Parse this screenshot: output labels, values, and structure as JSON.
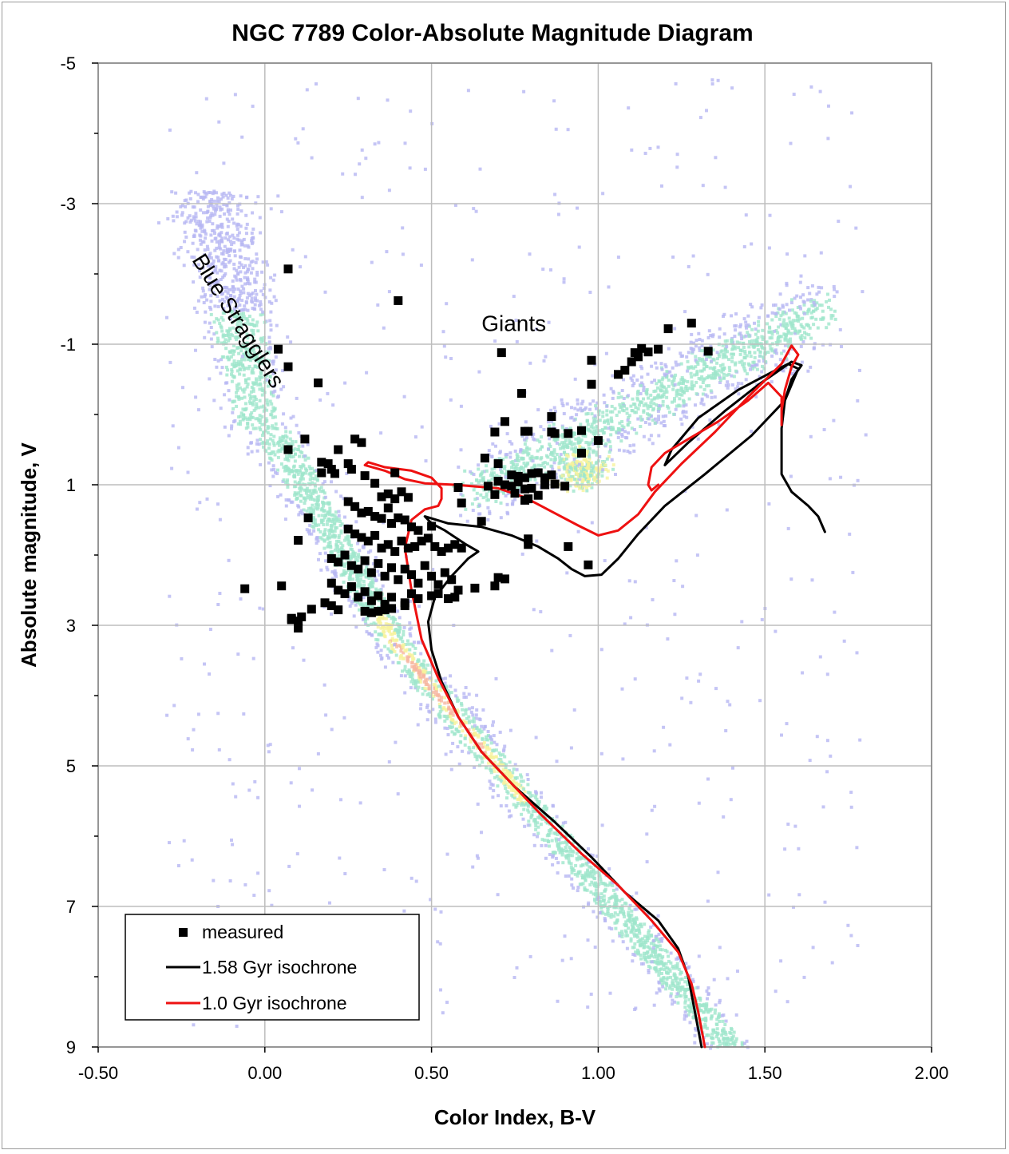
{
  "chart_data": {
    "type": "scatter",
    "title": "NGC 7789 Color-Absolute Magnitude Diagram",
    "xlabel": "Color Index, B-V",
    "ylabel": "Absolute magnitude, V",
    "xlim": [
      -0.5,
      2.0
    ],
    "ylim": [
      9,
      -5
    ],
    "y_inverted": true,
    "x_ticks": [
      -0.5,
      0.0,
      0.5,
      1.0,
      1.5,
      2.0
    ],
    "x_tick_labels": [
      "-0.50",
      "0.00",
      "0.50",
      "1.00",
      "1.50",
      "2.00"
    ],
    "y_ticks": [
      -5,
      -3,
      -1,
      1,
      3,
      5,
      7,
      9
    ],
    "y_tick_labels": [
      "-5",
      "-3",
      "-1",
      "1",
      "3",
      "5",
      "7",
      "9"
    ],
    "y_minor_step": 1,
    "grid": true,
    "legend_position": "bottom-left",
    "colors": {
      "measured": "#000000",
      "iso_158": "#000000",
      "iso_10": "#ee1111",
      "density_low": "#b6b6f2",
      "density_mid": "#9fe6cc",
      "density_high": "#f6f39c",
      "density_peak": "#f6b6a0"
    },
    "annotations": [
      {
        "text": "Blue Stragglers",
        "x": -0.22,
        "y": -2.2,
        "rotation": 58
      },
      {
        "text": "Giants",
        "x": 0.65,
        "y": -1.3
      }
    ],
    "legend": {
      "items": [
        {
          "label": "measured"
        },
        {
          "label": "1.58 Gyr isochrone"
        },
        {
          "label": "1.0 Gyr isochrone"
        }
      ]
    },
    "series": [
      {
        "name": "measured",
        "kind": "scatter",
        "points": [
          [
            0.07,
            -2.07
          ],
          [
            0.4,
            -1.62
          ],
          [
            0.04,
            -0.93
          ],
          [
            0.07,
            -0.68
          ],
          [
            0.16,
            -0.45
          ],
          [
            0.71,
            -0.88
          ],
          [
            0.98,
            -0.77
          ],
          [
            0.98,
            -0.43
          ],
          [
            0.77,
            -0.3
          ],
          [
            1.21,
            -1.22
          ],
          [
            1.28,
            -1.3
          ],
          [
            1.33,
            -0.9
          ],
          [
            1.13,
            -0.94
          ],
          [
            1.15,
            -0.89
          ],
          [
            1.18,
            -0.93
          ],
          [
            1.11,
            -0.88
          ],
          [
            1.12,
            -0.82
          ],
          [
            1.1,
            -0.75
          ],
          [
            1.08,
            -0.63
          ],
          [
            1.06,
            -0.57
          ],
          [
            0.72,
            0.1
          ],
          [
            0.69,
            0.25
          ],
          [
            0.78,
            0.24
          ],
          [
            0.79,
            0.24
          ],
          [
            0.86,
            0.03
          ],
          [
            0.86,
            0.25
          ],
          [
            0.87,
            0.27
          ],
          [
            0.91,
            0.27
          ],
          [
            0.95,
            0.23
          ],
          [
            1.0,
            0.37
          ],
          [
            0.95,
            0.55
          ],
          [
            0.66,
            0.62
          ],
          [
            0.7,
            0.7
          ],
          [
            0.74,
            0.86
          ],
          [
            0.76,
            0.88
          ],
          [
            0.78,
            0.9
          ],
          [
            0.8,
            0.84
          ],
          [
            0.82,
            0.83
          ],
          [
            0.84,
            0.9
          ],
          [
            0.86,
            0.86
          ],
          [
            0.7,
            0.95
          ],
          [
            0.72,
            1.0
          ],
          [
            0.74,
            1.02
          ],
          [
            0.76,
            0.96
          ],
          [
            0.78,
            1.06
          ],
          [
            0.8,
            1.05
          ],
          [
            0.82,
            1.15
          ],
          [
            0.84,
            1.0
          ],
          [
            0.87,
            0.99
          ],
          [
            0.9,
            1.02
          ],
          [
            0.67,
            1.02
          ],
          [
            0.69,
            1.14
          ],
          [
            0.75,
            1.12
          ],
          [
            0.78,
            1.22
          ],
          [
            0.79,
            1.2
          ],
          [
            0.58,
            1.04
          ],
          [
            0.59,
            1.26
          ],
          [
            0.65,
            1.52
          ],
          [
            0.79,
            1.77
          ],
          [
            0.79,
            1.85
          ],
          [
            0.91,
            1.88
          ],
          [
            0.97,
            2.14
          ],
          [
            0.7,
            2.32
          ],
          [
            0.72,
            2.34
          ],
          [
            0.69,
            2.44
          ],
          [
            0.63,
            2.47
          ],
          [
            0.27,
            0.35
          ],
          [
            0.29,
            0.4
          ],
          [
            0.22,
            0.5
          ],
          [
            0.07,
            0.5
          ],
          [
            0.12,
            0.35
          ],
          [
            0.17,
            0.68
          ],
          [
            0.19,
            0.7
          ],
          [
            0.2,
            0.78
          ],
          [
            0.17,
            0.83
          ],
          [
            0.21,
            0.84
          ],
          [
            0.26,
            0.78
          ],
          [
            0.3,
            0.87
          ],
          [
            0.39,
            0.83
          ],
          [
            0.25,
            0.7
          ],
          [
            0.33,
            0.98
          ],
          [
            0.37,
            1.13
          ],
          [
            0.39,
            1.2
          ],
          [
            0.41,
            1.1
          ],
          [
            0.43,
            1.18
          ],
          [
            0.35,
            1.17
          ],
          [
            0.25,
            1.24
          ],
          [
            0.13,
            1.47
          ],
          [
            0.1,
            1.79
          ],
          [
            0.27,
            1.31
          ],
          [
            0.29,
            1.4
          ],
          [
            0.31,
            1.38
          ],
          [
            0.33,
            1.45
          ],
          [
            0.35,
            1.48
          ],
          [
            0.37,
            1.33
          ],
          [
            0.38,
            1.55
          ],
          [
            0.4,
            1.47
          ],
          [
            0.42,
            1.5
          ],
          [
            0.44,
            1.6
          ],
          [
            0.46,
            1.65
          ],
          [
            0.5,
            1.59
          ],
          [
            0.25,
            1.63
          ],
          [
            0.27,
            1.7
          ],
          [
            0.29,
            1.75
          ],
          [
            0.31,
            1.8
          ],
          [
            0.33,
            1.72
          ],
          [
            0.35,
            1.9
          ],
          [
            0.37,
            1.85
          ],
          [
            0.39,
            1.95
          ],
          [
            0.41,
            1.8
          ],
          [
            0.43,
            1.9
          ],
          [
            0.45,
            1.88
          ],
          [
            0.47,
            1.8
          ],
          [
            0.49,
            1.76
          ],
          [
            0.51,
            1.88
          ],
          [
            0.53,
            1.95
          ],
          [
            0.55,
            1.9
          ],
          [
            0.57,
            1.85
          ],
          [
            0.59,
            1.9
          ],
          [
            0.2,
            2.05
          ],
          [
            0.22,
            2.1
          ],
          [
            0.24,
            2.0
          ],
          [
            0.26,
            2.15
          ],
          [
            0.28,
            2.2
          ],
          [
            0.3,
            2.08
          ],
          [
            0.32,
            2.25
          ],
          [
            0.34,
            2.12
          ],
          [
            0.36,
            2.3
          ],
          [
            0.38,
            2.18
          ],
          [
            0.4,
            2.35
          ],
          [
            0.42,
            2.2
          ],
          [
            0.44,
            2.28
          ],
          [
            0.46,
            2.4
          ],
          [
            0.48,
            2.15
          ],
          [
            0.5,
            2.3
          ],
          [
            0.52,
            2.42
          ],
          [
            0.54,
            2.25
          ],
          [
            0.56,
            2.35
          ],
          [
            0.58,
            2.5
          ],
          [
            0.2,
            2.4
          ],
          [
            0.22,
            2.5
          ],
          [
            0.24,
            2.55
          ],
          [
            0.26,
            2.45
          ],
          [
            0.28,
            2.6
          ],
          [
            0.3,
            2.52
          ],
          [
            0.32,
            2.65
          ],
          [
            0.34,
            2.58
          ],
          [
            0.36,
            2.7
          ],
          [
            0.38,
            2.6
          ],
          [
            0.42,
            2.68
          ],
          [
            0.44,
            2.55
          ],
          [
            0.46,
            2.62
          ],
          [
            0.5,
            2.58
          ],
          [
            0.52,
            2.55
          ],
          [
            0.55,
            2.62
          ],
          [
            0.57,
            2.6
          ],
          [
            0.2,
            2.72
          ],
          [
            0.22,
            2.78
          ],
          [
            0.3,
            2.8
          ],
          [
            0.32,
            2.82
          ],
          [
            0.34,
            2.8
          ],
          [
            0.36,
            2.78
          ],
          [
            0.38,
            2.76
          ],
          [
            0.42,
            2.72
          ],
          [
            0.05,
            2.44
          ],
          [
            -0.06,
            2.48
          ],
          [
            0.08,
            2.9
          ],
          [
            0.1,
            2.94
          ],
          [
            0.1,
            3.04
          ],
          [
            0.11,
            2.88
          ],
          [
            0.14,
            2.77
          ],
          [
            0.18,
            2.68
          ],
          [
            0.08,
            2.92
          ]
        ]
      },
      {
        "name": "1.58 Gyr isochrone",
        "kind": "line",
        "segments": [
          [
            [
              1.31,
              9.0
            ],
            [
              1.29,
              8.5
            ],
            [
              1.27,
              8.0
            ],
            [
              1.24,
              7.6
            ],
            [
              1.18,
              7.2
            ],
            [
              1.08,
              6.8
            ],
            [
              0.98,
              6.3
            ],
            [
              0.87,
              5.8
            ],
            [
              0.75,
              5.3
            ],
            [
              0.65,
              4.8
            ],
            [
              0.58,
              4.3
            ],
            [
              0.53,
              3.8
            ],
            [
              0.5,
              3.35
            ],
            [
              0.49,
              2.95
            ],
            [
              0.51,
              2.6
            ],
            [
              0.56,
              2.3
            ],
            [
              0.61,
              2.05
            ],
            [
              0.64,
              1.95
            ],
            [
              0.6,
              1.84
            ],
            [
              0.54,
              1.65
            ],
            [
              0.5,
              1.55
            ],
            [
              0.48,
              1.45
            ],
            [
              0.55,
              1.55
            ],
            [
              0.65,
              1.6
            ],
            [
              0.74,
              1.72
            ],
            [
              0.82,
              1.88
            ],
            [
              0.88,
              2.05
            ],
            [
              0.92,
              2.2
            ],
            [
              0.96,
              2.3
            ],
            [
              1.01,
              2.28
            ],
            [
              1.06,
              2.05
            ],
            [
              1.12,
              1.7
            ],
            [
              1.2,
              1.3
            ],
            [
              1.32,
              0.85
            ],
            [
              1.46,
              0.3
            ],
            [
              1.56,
              -0.2
            ],
            [
              1.6,
              -0.65
            ],
            [
              1.57,
              -0.72
            ],
            [
              1.52,
              -0.6
            ],
            [
              1.42,
              -0.35
            ],
            [
              1.3,
              0.05
            ],
            [
              1.22,
              0.5
            ],
            [
              1.2,
              0.72
            ],
            [
              1.27,
              0.4
            ],
            [
              1.38,
              -0.05
            ],
            [
              1.48,
              -0.42
            ],
            [
              1.58,
              -0.75
            ],
            [
              1.61,
              -0.7
            ],
            [
              1.58,
              -0.5
            ],
            [
              1.56,
              -0.2
            ],
            [
              1.55,
              0.2
            ],
            [
              1.55,
              0.6
            ],
            [
              1.55,
              0.85
            ],
            [
              1.58,
              1.1
            ],
            [
              1.63,
              1.3
            ],
            [
              1.66,
              1.45
            ],
            [
              1.68,
              1.67
            ]
          ]
        ]
      },
      {
        "name": "1.0 Gyr isochrone",
        "kind": "line",
        "segments": [
          [
            [
              1.32,
              9.0
            ],
            [
              1.3,
              8.5
            ],
            [
              1.28,
              8.1
            ],
            [
              1.24,
              7.65
            ],
            [
              1.16,
              7.2
            ],
            [
              1.06,
              6.7
            ],
            [
              0.95,
              6.25
            ],
            [
              0.83,
              5.7
            ],
            [
              0.73,
              5.2
            ],
            [
              0.65,
              4.8
            ],
            [
              0.58,
              4.3
            ],
            [
              0.52,
              3.75
            ],
            [
              0.47,
              3.2
            ],
            [
              0.44,
              2.5
            ],
            [
              0.42,
              1.9
            ],
            [
              0.44,
              1.5
            ],
            [
              0.48,
              1.35
            ],
            [
              0.52,
              1.3
            ],
            [
              0.53,
              1.2
            ],
            [
              0.53,
              1.05
            ],
            [
              0.5,
              0.9
            ],
            [
              0.44,
              0.8
            ],
            [
              0.36,
              0.75
            ],
            [
              0.31,
              0.68
            ],
            [
              0.3,
              0.72
            ],
            [
              0.36,
              0.8
            ],
            [
              0.42,
              0.92
            ],
            [
              0.48,
              0.98
            ],
            [
              0.57,
              1.0
            ],
            [
              0.62,
              1.02
            ],
            [
              0.7,
              1.05
            ],
            [
              0.78,
              1.18
            ],
            [
              0.86,
              1.38
            ],
            [
              0.94,
              1.58
            ],
            [
              1.0,
              1.72
            ],
            [
              1.06,
              1.65
            ],
            [
              1.12,
              1.42
            ],
            [
              1.17,
              1.1
            ],
            [
              1.25,
              0.7
            ],
            [
              1.35,
              0.25
            ],
            [
              1.45,
              -0.25
            ],
            [
              1.55,
              -0.72
            ],
            [
              1.58,
              -0.98
            ],
            [
              1.6,
              -0.85
            ],
            [
              1.58,
              -0.68
            ],
            [
              1.56,
              -0.35
            ],
            [
              1.55,
              -0.05
            ],
            [
              1.55,
              0.15
            ],
            [
              1.55,
              -0.25
            ],
            [
              1.51,
              -0.45
            ],
            [
              1.45,
              -0.2
            ],
            [
              1.36,
              0.1
            ],
            [
              1.27,
              0.35
            ],
            [
              1.2,
              0.55
            ],
            [
              1.16,
              0.75
            ],
            [
              1.15,
              1.0
            ],
            [
              1.16,
              1.08
            ],
            [
              1.18,
              1.0
            ]
          ]
        ]
      }
    ]
  }
}
